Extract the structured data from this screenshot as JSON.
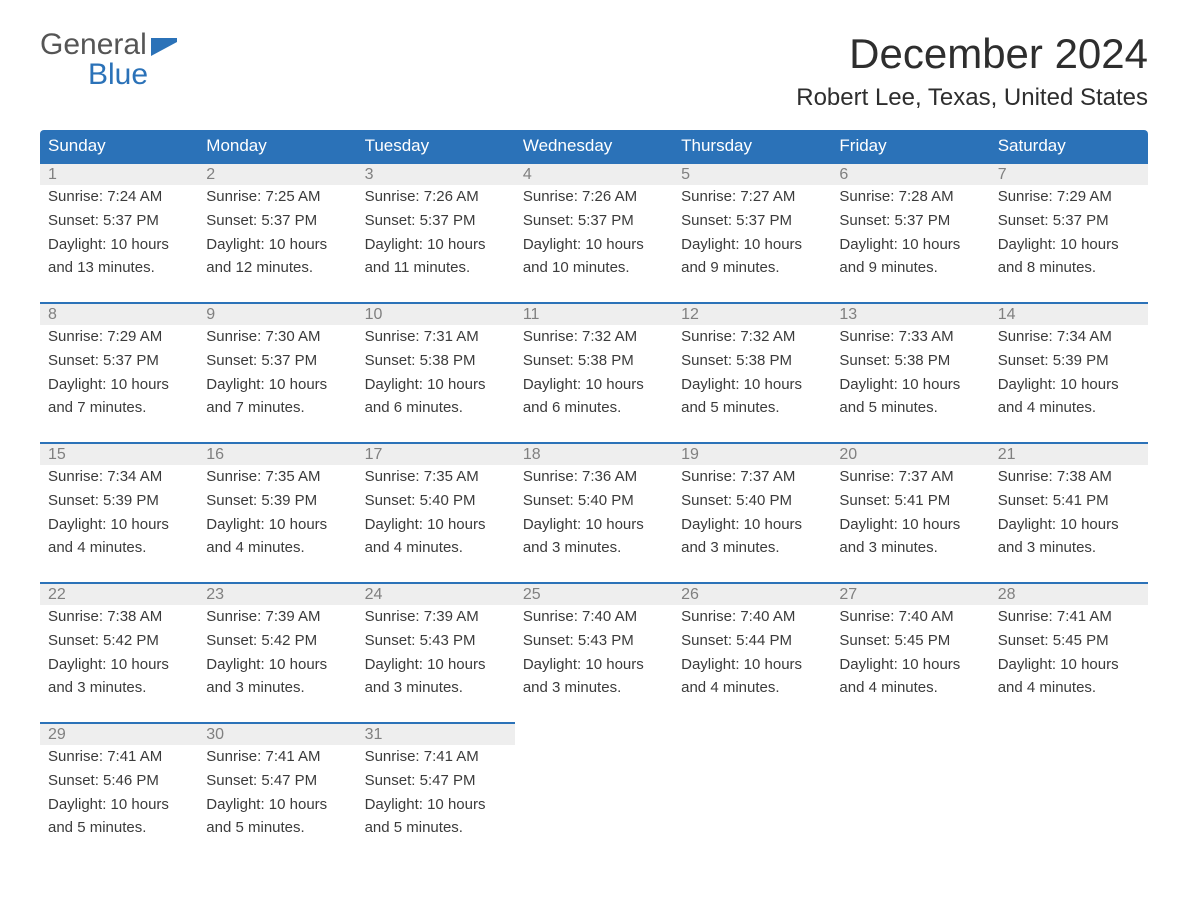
{
  "logo": {
    "word1": "General",
    "word2": "Blue",
    "brand_color": "#2b72b8",
    "text_color": "#555555"
  },
  "title": "December 2024",
  "location": "Robert Lee, Texas, United States",
  "weekdays": [
    "Sunday",
    "Monday",
    "Tuesday",
    "Wednesday",
    "Thursday",
    "Friday",
    "Saturday"
  ],
  "colors": {
    "header_bg": "#2b72b8",
    "header_text": "#ffffff",
    "daynum_bg": "#eeeeee",
    "daynum_text": "#808080",
    "body_text": "#3b3b3b",
    "row_border": "#2b72b8",
    "background": "#ffffff"
  },
  "weeks": [
    [
      {
        "n": "1",
        "sunrise": "Sunrise: 7:24 AM",
        "sunset": "Sunset: 5:37 PM",
        "dl1": "Daylight: 10 hours",
        "dl2": "and 13 minutes."
      },
      {
        "n": "2",
        "sunrise": "Sunrise: 7:25 AM",
        "sunset": "Sunset: 5:37 PM",
        "dl1": "Daylight: 10 hours",
        "dl2": "and 12 minutes."
      },
      {
        "n": "3",
        "sunrise": "Sunrise: 7:26 AM",
        "sunset": "Sunset: 5:37 PM",
        "dl1": "Daylight: 10 hours",
        "dl2": "and 11 minutes."
      },
      {
        "n": "4",
        "sunrise": "Sunrise: 7:26 AM",
        "sunset": "Sunset: 5:37 PM",
        "dl1": "Daylight: 10 hours",
        "dl2": "and 10 minutes."
      },
      {
        "n": "5",
        "sunrise": "Sunrise: 7:27 AM",
        "sunset": "Sunset: 5:37 PM",
        "dl1": "Daylight: 10 hours",
        "dl2": "and 9 minutes."
      },
      {
        "n": "6",
        "sunrise": "Sunrise: 7:28 AM",
        "sunset": "Sunset: 5:37 PM",
        "dl1": "Daylight: 10 hours",
        "dl2": "and 9 minutes."
      },
      {
        "n": "7",
        "sunrise": "Sunrise: 7:29 AM",
        "sunset": "Sunset: 5:37 PM",
        "dl1": "Daylight: 10 hours",
        "dl2": "and 8 minutes."
      }
    ],
    [
      {
        "n": "8",
        "sunrise": "Sunrise: 7:29 AM",
        "sunset": "Sunset: 5:37 PM",
        "dl1": "Daylight: 10 hours",
        "dl2": "and 7 minutes."
      },
      {
        "n": "9",
        "sunrise": "Sunrise: 7:30 AM",
        "sunset": "Sunset: 5:37 PM",
        "dl1": "Daylight: 10 hours",
        "dl2": "and 7 minutes."
      },
      {
        "n": "10",
        "sunrise": "Sunrise: 7:31 AM",
        "sunset": "Sunset: 5:38 PM",
        "dl1": "Daylight: 10 hours",
        "dl2": "and 6 minutes."
      },
      {
        "n": "11",
        "sunrise": "Sunrise: 7:32 AM",
        "sunset": "Sunset: 5:38 PM",
        "dl1": "Daylight: 10 hours",
        "dl2": "and 6 minutes."
      },
      {
        "n": "12",
        "sunrise": "Sunrise: 7:32 AM",
        "sunset": "Sunset: 5:38 PM",
        "dl1": "Daylight: 10 hours",
        "dl2": "and 5 minutes."
      },
      {
        "n": "13",
        "sunrise": "Sunrise: 7:33 AM",
        "sunset": "Sunset: 5:38 PM",
        "dl1": "Daylight: 10 hours",
        "dl2": "and 5 minutes."
      },
      {
        "n": "14",
        "sunrise": "Sunrise: 7:34 AM",
        "sunset": "Sunset: 5:39 PM",
        "dl1": "Daylight: 10 hours",
        "dl2": "and 4 minutes."
      }
    ],
    [
      {
        "n": "15",
        "sunrise": "Sunrise: 7:34 AM",
        "sunset": "Sunset: 5:39 PM",
        "dl1": "Daylight: 10 hours",
        "dl2": "and 4 minutes."
      },
      {
        "n": "16",
        "sunrise": "Sunrise: 7:35 AM",
        "sunset": "Sunset: 5:39 PM",
        "dl1": "Daylight: 10 hours",
        "dl2": "and 4 minutes."
      },
      {
        "n": "17",
        "sunrise": "Sunrise: 7:35 AM",
        "sunset": "Sunset: 5:40 PM",
        "dl1": "Daylight: 10 hours",
        "dl2": "and 4 minutes."
      },
      {
        "n": "18",
        "sunrise": "Sunrise: 7:36 AM",
        "sunset": "Sunset: 5:40 PM",
        "dl1": "Daylight: 10 hours",
        "dl2": "and 3 minutes."
      },
      {
        "n": "19",
        "sunrise": "Sunrise: 7:37 AM",
        "sunset": "Sunset: 5:40 PM",
        "dl1": "Daylight: 10 hours",
        "dl2": "and 3 minutes."
      },
      {
        "n": "20",
        "sunrise": "Sunrise: 7:37 AM",
        "sunset": "Sunset: 5:41 PM",
        "dl1": "Daylight: 10 hours",
        "dl2": "and 3 minutes."
      },
      {
        "n": "21",
        "sunrise": "Sunrise: 7:38 AM",
        "sunset": "Sunset: 5:41 PM",
        "dl1": "Daylight: 10 hours",
        "dl2": "and 3 minutes."
      }
    ],
    [
      {
        "n": "22",
        "sunrise": "Sunrise: 7:38 AM",
        "sunset": "Sunset: 5:42 PM",
        "dl1": "Daylight: 10 hours",
        "dl2": "and 3 minutes."
      },
      {
        "n": "23",
        "sunrise": "Sunrise: 7:39 AM",
        "sunset": "Sunset: 5:42 PM",
        "dl1": "Daylight: 10 hours",
        "dl2": "and 3 minutes."
      },
      {
        "n": "24",
        "sunrise": "Sunrise: 7:39 AM",
        "sunset": "Sunset: 5:43 PM",
        "dl1": "Daylight: 10 hours",
        "dl2": "and 3 minutes."
      },
      {
        "n": "25",
        "sunrise": "Sunrise: 7:40 AM",
        "sunset": "Sunset: 5:43 PM",
        "dl1": "Daylight: 10 hours",
        "dl2": "and 3 minutes."
      },
      {
        "n": "26",
        "sunrise": "Sunrise: 7:40 AM",
        "sunset": "Sunset: 5:44 PM",
        "dl1": "Daylight: 10 hours",
        "dl2": "and 4 minutes."
      },
      {
        "n": "27",
        "sunrise": "Sunrise: 7:40 AM",
        "sunset": "Sunset: 5:45 PM",
        "dl1": "Daylight: 10 hours",
        "dl2": "and 4 minutes."
      },
      {
        "n": "28",
        "sunrise": "Sunrise: 7:41 AM",
        "sunset": "Sunset: 5:45 PM",
        "dl1": "Daylight: 10 hours",
        "dl2": "and 4 minutes."
      }
    ],
    [
      {
        "n": "29",
        "sunrise": "Sunrise: 7:41 AM",
        "sunset": "Sunset: 5:46 PM",
        "dl1": "Daylight: 10 hours",
        "dl2": "and 5 minutes."
      },
      {
        "n": "30",
        "sunrise": "Sunrise: 7:41 AM",
        "sunset": "Sunset: 5:47 PM",
        "dl1": "Daylight: 10 hours",
        "dl2": "and 5 minutes."
      },
      {
        "n": "31",
        "sunrise": "Sunrise: 7:41 AM",
        "sunset": "Sunset: 5:47 PM",
        "dl1": "Daylight: 10 hours",
        "dl2": "and 5 minutes."
      },
      null,
      null,
      null,
      null
    ]
  ]
}
